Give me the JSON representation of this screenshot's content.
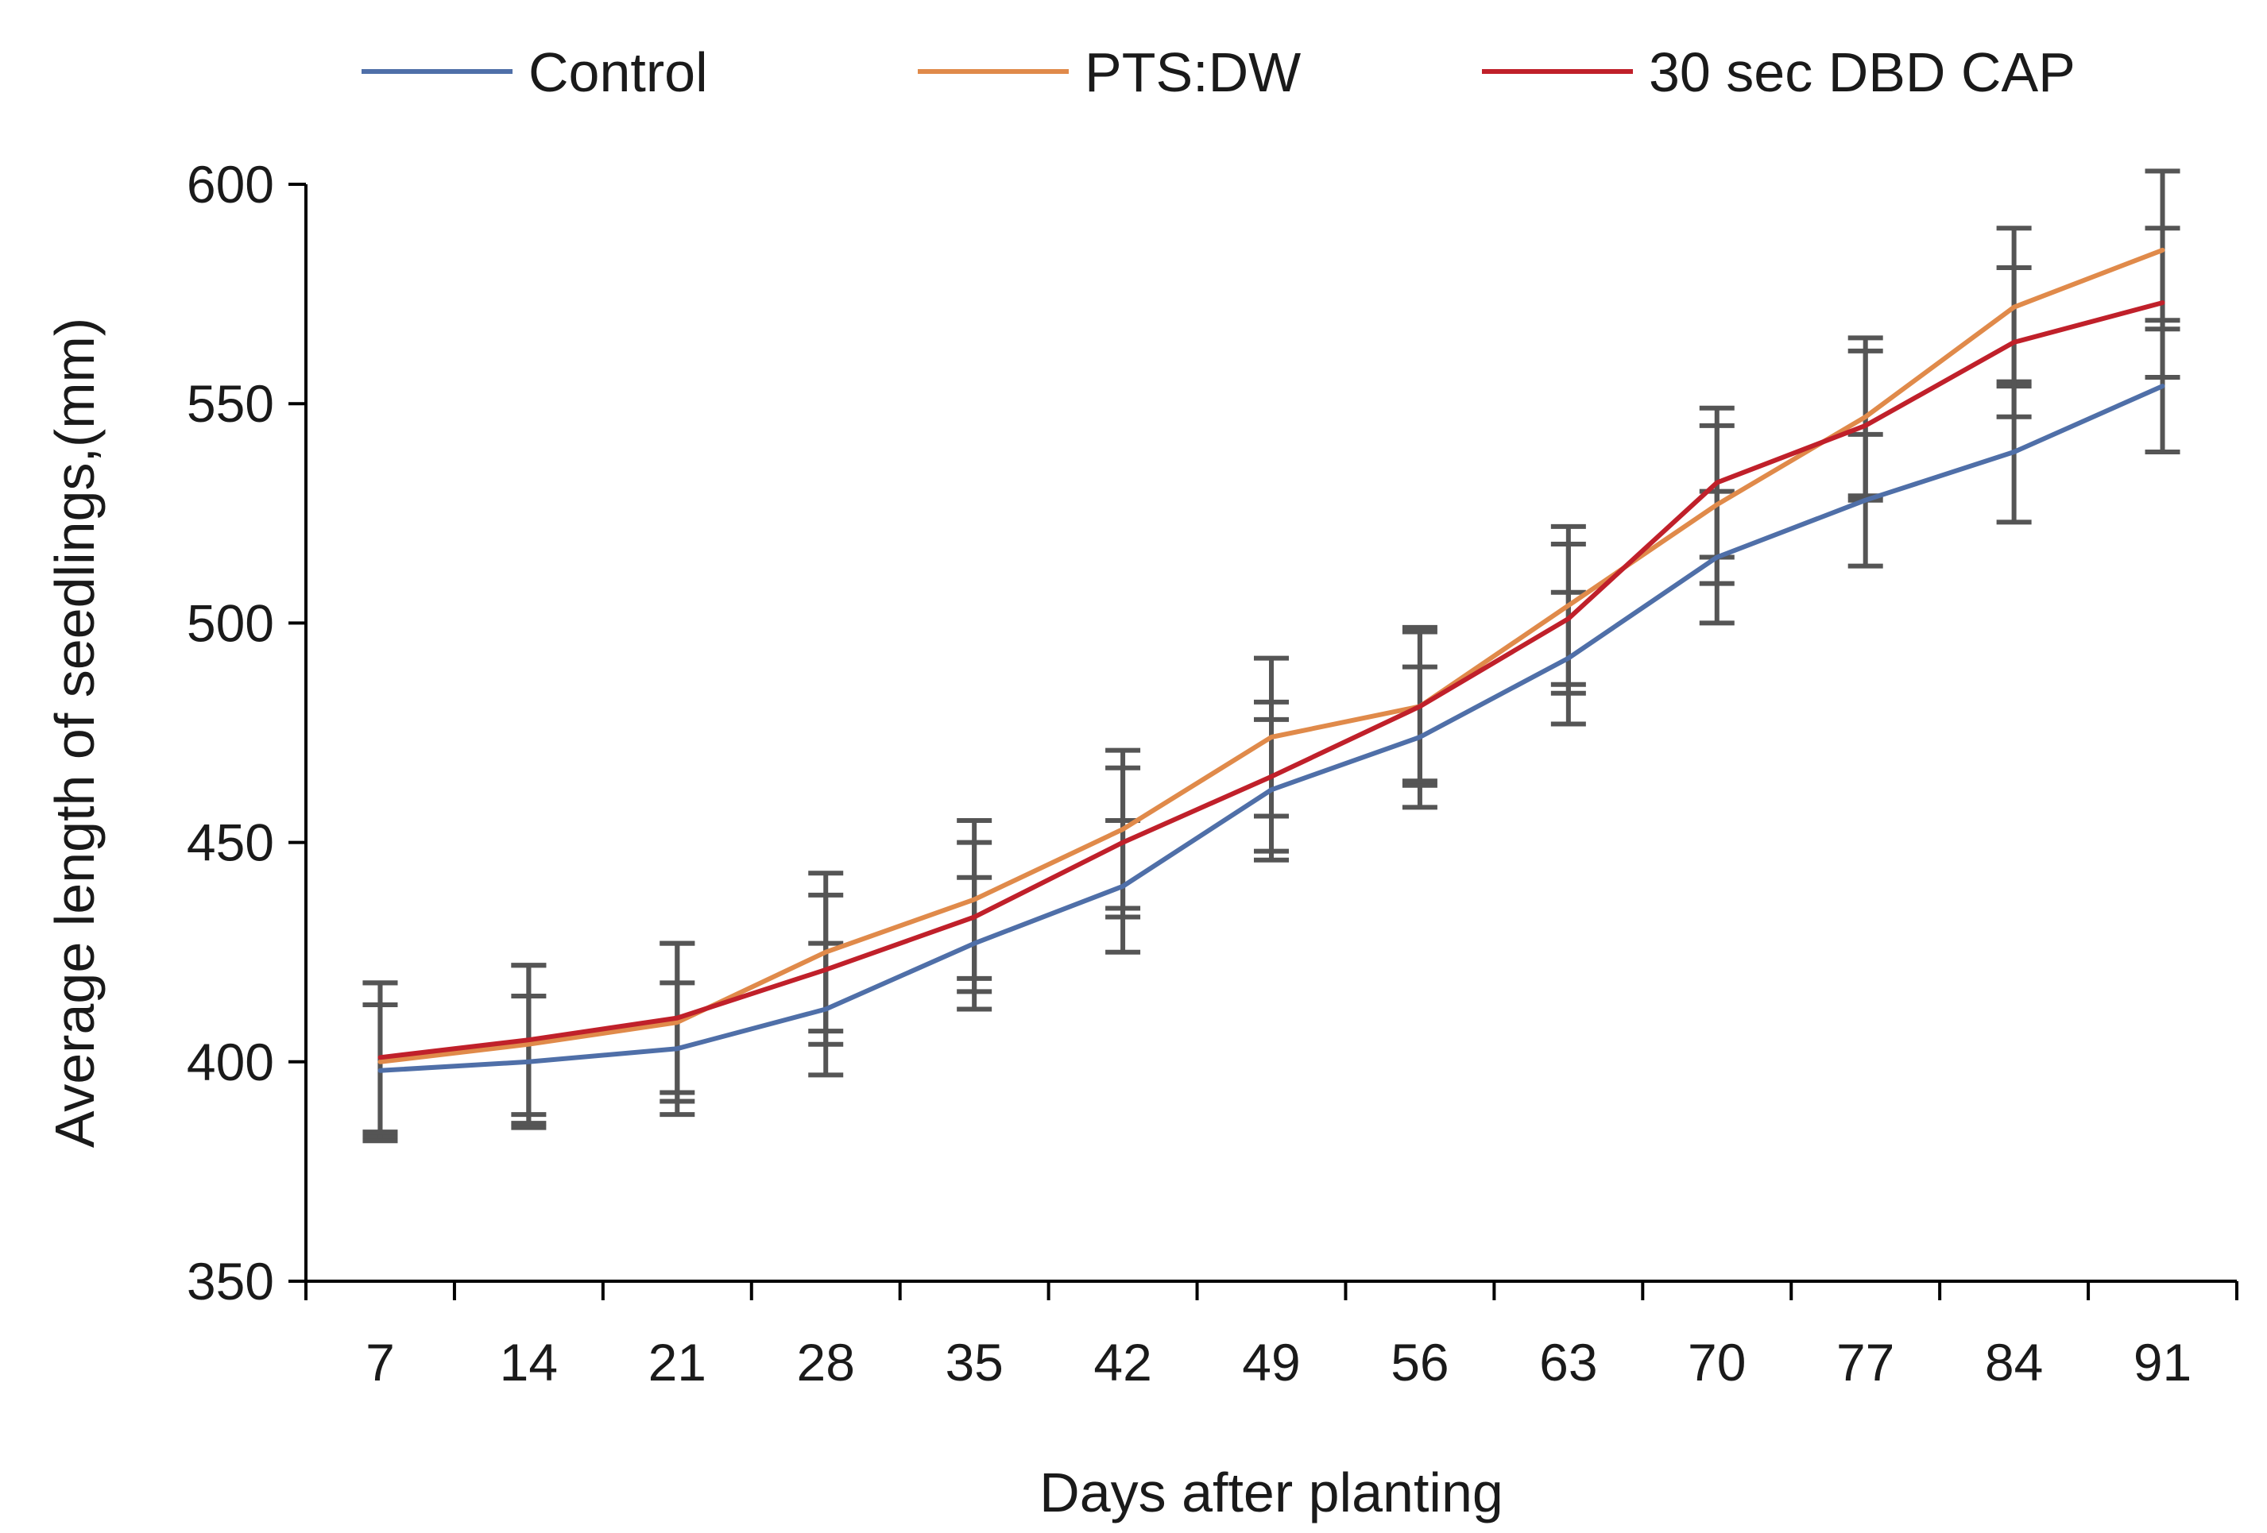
{
  "chart_data": {
    "type": "line",
    "title": "",
    "xlabel": "Days after planting",
    "ylabel": "Average length of seedlings,(mm)",
    "categories": [
      "7",
      "14",
      "21",
      "28",
      "35",
      "42",
      "49",
      "56",
      "63",
      "70",
      "77",
      "84",
      "91"
    ],
    "ylim": [
      350,
      600
    ],
    "yticks": [
      "350",
      "400",
      "450",
      "500",
      "550",
      "600"
    ],
    "grid": false,
    "legend_position": "top",
    "series": [
      {
        "name": "Control",
        "color": "#4f6fa8",
        "values": [
          398,
          400,
          403,
          412,
          427,
          440,
          462,
          474,
          492,
          515,
          528,
          539,
          554
        ],
        "error": [
          15,
          15,
          15,
          15,
          15,
          15,
          16,
          16,
          15,
          15,
          15,
          16,
          15
        ]
      },
      {
        "name": "PTS:DW",
        "color": "#e08a4a",
        "values": [
          400,
          404,
          409,
          425,
          437,
          453,
          474,
          481,
          504,
          527,
          547,
          572,
          585
        ],
        "error": [
          18,
          18,
          18,
          18,
          18,
          18,
          18,
          18,
          18,
          18,
          18,
          18,
          18
        ]
      },
      {
        "name": "30 sec DBD CAP",
        "color": "#c0202a",
        "values": [
          401,
          405,
          410,
          421,
          433,
          450,
          465,
          481,
          501,
          532,
          545,
          564,
          573
        ],
        "error": [
          17,
          17,
          17,
          17,
          17,
          17,
          17,
          17,
          17,
          17,
          17,
          17,
          17
        ]
      }
    ]
  }
}
